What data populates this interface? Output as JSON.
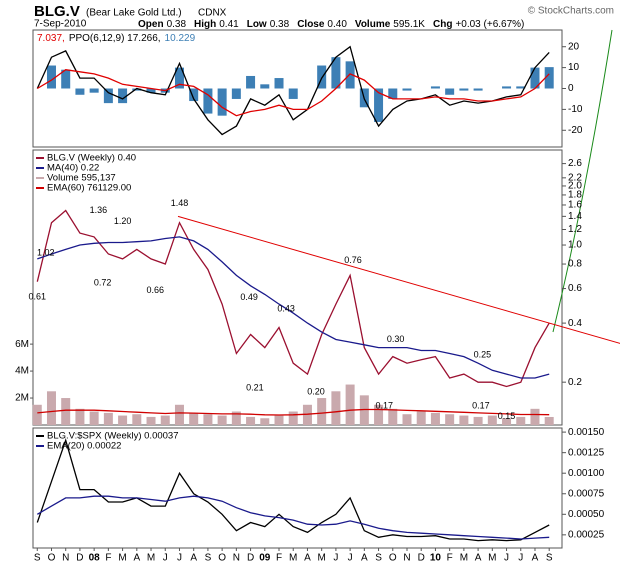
{
  "header": {
    "symbol": "BLG.V",
    "name": "(Bear Lake Gold Ltd.)",
    "exchange": "CDNX",
    "watermark": "© StockCharts.com",
    "date": "7-Sep-2010",
    "quote": [
      {
        "label": "Open",
        "value": "0.38"
      },
      {
        "label": "High",
        "value": "0.41"
      },
      {
        "label": "Low",
        "value": "0.38"
      },
      {
        "label": "Close",
        "value": "0.40"
      },
      {
        "label": "Volume",
        "value": "595.1K"
      },
      {
        "label": "Chg",
        "value": "+0.03 (+6.67%)"
      }
    ]
  },
  "chart_data": [
    {
      "type": "line",
      "legend": "inline",
      "xlim": [
        -0.3,
        36.9
      ],
      "ylim": [
        -28,
        28
      ],
      "yticks": [
        20,
        10,
        0,
        -10,
        -20
      ],
      "x": [
        0,
        1,
        2,
        3,
        4,
        5,
        6,
        7,
        8,
        9,
        10,
        11,
        12,
        13,
        14,
        15,
        16,
        17,
        18,
        19,
        20,
        21,
        22,
        23,
        24,
        25,
        26,
        27,
        28,
        29,
        30,
        31,
        32,
        33,
        34,
        35,
        36
      ],
      "series": [
        {
          "name": "10.229",
          "type": "bar",
          "color": "#3d7fb5",
          "values": [
            0,
            11,
            9,
            -3,
            -2,
            -7,
            -7,
            -1,
            -2,
            -2,
            10,
            -6,
            -12,
            -13,
            -5,
            6,
            2,
            5,
            -5,
            0,
            11,
            15,
            13,
            -9,
            -16,
            -5,
            -1,
            0,
            1,
            -3,
            -1,
            -1,
            0,
            1,
            1,
            10,
            10.229
          ]
        },
        {
          "name": "PPO(6,12,9) 17.266,",
          "color": "#000000",
          "values": [
            0,
            15,
            18,
            5,
            5,
            -2,
            -5,
            0,
            -2,
            -3,
            12,
            -5,
            -15,
            -22,
            -18,
            -5,
            -8,
            -3,
            -15,
            -10,
            5,
            15,
            20,
            -5,
            -18,
            -10,
            -6,
            -5,
            -3,
            -8,
            -6,
            -7,
            -6,
            -4,
            -3,
            10,
            17.266
          ]
        },
        {
          "name": "7.037,",
          "color": "#e00000",
          "values": [
            0,
            4,
            9,
            8,
            7,
            5,
            2,
            1,
            0,
            -1,
            2,
            1,
            -3,
            -9,
            -13,
            -11,
            -10,
            -8,
            -10,
            -10,
            -6,
            0,
            7,
            4,
            -2,
            -5,
            -5,
            -5,
            -4,
            -5,
            -5,
            -6,
            -6,
            -5,
            -4,
            0,
            7.037
          ]
        }
      ]
    },
    {
      "type": "line",
      "legend": "upper left",
      "log": true,
      "xlim": [
        -0.3,
        36.9
      ],
      "ylim": [
        0.121,
        3.05
      ],
      "yticks": [
        0.2,
        0.4,
        0.6,
        0.8,
        {
          "value": 1,
          "label": "1.0"
        },
        1.2,
        1.4,
        1.6,
        1.8,
        {
          "value": 2,
          "label": "2.0"
        },
        2.2,
        2.6
      ],
      "y2lim": [
        0,
        20400000
      ],
      "y2ticks": [
        {
          "value": 2000000,
          "label": "2M"
        },
        {
          "value": 4000000,
          "label": "4M"
        },
        {
          "value": 6000000,
          "label": "6M"
        }
      ],
      "x": [
        0,
        1,
        2,
        3,
        4,
        5,
        6,
        7,
        8,
        9,
        10,
        11,
        12,
        13,
        14,
        15,
        16,
        17,
        18,
        19,
        20,
        21,
        22,
        23,
        24,
        25,
        26,
        27,
        28,
        29,
        30,
        31,
        32,
        33,
        34,
        35,
        36
      ],
      "series": [
        {
          "name": "Volume 595,137",
          "type": "bar",
          "axis": "y2",
          "color": "#c9a9ad",
          "values": [
            1500000,
            2500000,
            2000000,
            1200000,
            1000000,
            900000,
            700000,
            800000,
            600000,
            700000,
            1500000,
            900000,
            800000,
            700000,
            1000000,
            600000,
            500000,
            700000,
            1000000,
            1500000,
            2000000,
            2500000,
            3000000,
            2200000,
            1500000,
            1200000,
            800000,
            1000000,
            900000,
            800000,
            700000,
            600000,
            700000,
            500000,
            600000,
            1200000,
            595137
          ]
        },
        {
          "name": "EMA(60) 761129.00",
          "axis": "y2",
          "color": "#d00000",
          "values": [
            900000,
            1000000,
            1100000,
            1100000,
            1100000,
            1050000,
            1000000,
            950000,
            900000,
            850000,
            900000,
            880000,
            850000,
            820000,
            820000,
            800000,
            760000,
            740000,
            760000,
            800000,
            880000,
            980000,
            1100000,
            1150000,
            1150000,
            1120000,
            1080000,
            1050000,
            1020000,
            980000,
            940000,
            900000,
            860000,
            820000,
            780000,
            780000,
            761129
          ]
        },
        {
          "name": "BLG.V (Weekly) 0.40",
          "color": "#9b1030",
          "values": [
            0.65,
            1.3,
            1.5,
            1.15,
            1.1,
            0.9,
            0.85,
            0.95,
            0.85,
            0.8,
            1.3,
            0.95,
            0.75,
            0.5,
            0.28,
            0.35,
            0.3,
            0.38,
            0.25,
            0.22,
            0.35,
            0.5,
            0.7,
            0.3,
            0.22,
            0.27,
            0.25,
            0.26,
            0.27,
            0.21,
            0.22,
            0.2,
            0.2,
            0.19,
            0.2,
            0.3,
            0.4
          ]
        },
        {
          "name": "MA(40) 0.22",
          "color": "#1a1a8c",
          "values": [
            0.85,
            0.9,
            0.95,
            1.0,
            1.02,
            1.03,
            1.03,
            1.04,
            1.05,
            1.08,
            1.1,
            1.05,
            0.95,
            0.82,
            0.7,
            0.62,
            0.56,
            0.5,
            0.45,
            0.4,
            0.36,
            0.33,
            0.32,
            0.31,
            0.3,
            0.3,
            0.3,
            0.29,
            0.29,
            0.28,
            0.27,
            0.25,
            0.23,
            0.22,
            0.21,
            0.21,
            0.22
          ]
        }
      ],
      "annotations": [
        {
          "x": 0,
          "value": 0.61,
          "label": "0.61"
        },
        {
          "x": 0.6,
          "value": 1.02,
          "label": "1.02"
        },
        {
          "x": 4.3,
          "value": 1.36,
          "label": "1.36"
        },
        {
          "x": 6,
          "value": 1.2,
          "label": "1.20"
        },
        {
          "x": 4.6,
          "value": 0.72,
          "label": "0.72"
        },
        {
          "x": 8.3,
          "value": 0.66,
          "label": "0.66"
        },
        {
          "x": 10,
          "value": 1.48,
          "label": "1.48"
        },
        {
          "x": 14.9,
          "value": 0.49,
          "label": "0.49"
        },
        {
          "x": 15.3,
          "value": 0.21,
          "label": "0.21"
        },
        {
          "x": 17.5,
          "value": 0.43,
          "label": "0.43"
        },
        {
          "x": 19.6,
          "value": 0.2,
          "label": "0.20"
        },
        {
          "x": 22.2,
          "value": 0.76,
          "label": "0.76"
        },
        {
          "x": 25.2,
          "value": 0.3,
          "label": "0.30"
        },
        {
          "x": 24.4,
          "value": 0.17,
          "label": "0.17"
        },
        {
          "x": 31.3,
          "value": 0.25,
          "label": "0.25"
        },
        {
          "x": 31.2,
          "value": 0.17,
          "label": "0.17"
        },
        {
          "x": 33.0,
          "value": 0.15,
          "label": "0.15"
        }
      ],
      "trendline": {
        "color": "#e00000",
        "x": [
          9.9,
          41
        ],
        "values": [
          1.4,
          0.315
        ]
      }
    },
    {
      "type": "line",
      "legend": "upper left",
      "xlim": [
        -0.3,
        36.9
      ],
      "ylim": [
        9e-05,
        0.00155
      ],
      "yticks": [
        0.00025,
        {
          "value": 0.0005,
          "label": "0.00050"
        },
        0.00075,
        {
          "value": 0.001,
          "label": "0.00100"
        },
        0.00125,
        {
          "value": 0.0015,
          "label": "0.00150"
        }
      ],
      "x": [
        0,
        1,
        2,
        3,
        4,
        5,
        6,
        7,
        8,
        9,
        10,
        11,
        12,
        13,
        14,
        15,
        16,
        17,
        18,
        19,
        20,
        21,
        22,
        23,
        24,
        25,
        26,
        27,
        28,
        29,
        30,
        31,
        32,
        33,
        34,
        35,
        36
      ],
      "xticks": [
        {
          "value": 0,
          "label": "S"
        },
        {
          "value": 1,
          "label": "O"
        },
        {
          "value": 2,
          "label": "N"
        },
        {
          "value": 3,
          "label": "D"
        },
        {
          "value": 4,
          "label": "08"
        },
        {
          "value": 5,
          "label": "F"
        },
        {
          "value": 6,
          "label": "M"
        },
        {
          "value": 7,
          "label": "A"
        },
        {
          "value": 8,
          "label": "M"
        },
        {
          "value": 9,
          "label": "J"
        },
        {
          "value": 10,
          "label": "J"
        },
        {
          "value": 11,
          "label": "A"
        },
        {
          "value": 12,
          "label": "S"
        },
        {
          "value": 13,
          "label": "O"
        },
        {
          "value": 14,
          "label": "N"
        },
        {
          "value": 15,
          "label": "D"
        },
        {
          "value": 16,
          "label": "09"
        },
        {
          "value": 17,
          "label": "F"
        },
        {
          "value": 18,
          "label": "M"
        },
        {
          "value": 19,
          "label": "A"
        },
        {
          "value": 20,
          "label": "M"
        },
        {
          "value": 21,
          "label": "J"
        },
        {
          "value": 22,
          "label": "J"
        },
        {
          "value": 23,
          "label": "A"
        },
        {
          "value": 24,
          "label": "S"
        },
        {
          "value": 25,
          "label": "O"
        },
        {
          "value": 26,
          "label": "N"
        },
        {
          "value": 27,
          "label": "D"
        },
        {
          "value": 28,
          "label": "10"
        },
        {
          "value": 29,
          "label": "F"
        },
        {
          "value": 30,
          "label": "M"
        },
        {
          "value": 31,
          "label": "A"
        },
        {
          "value": 32,
          "label": "M"
        },
        {
          "value": 33,
          "label": "J"
        },
        {
          "value": 34,
          "label": "J"
        },
        {
          "value": 35,
          "label": "A"
        },
        {
          "value": 36,
          "label": "S"
        }
      ],
      "series": [
        {
          "name": "BLG.V:$SPX (Weekly) 0.00037",
          "color": "#000000",
          "values": [
            0.0004,
            0.0009,
            0.0014,
            0.0008,
            0.0008,
            0.00065,
            0.00065,
            0.0007,
            0.0006,
            0.0006,
            0.001,
            0.00075,
            0.00065,
            0.0005,
            0.0003,
            0.0004,
            0.00035,
            0.0005,
            0.00035,
            0.00028,
            0.0004,
            0.0005,
            0.0007,
            0.0003,
            0.00022,
            0.00025,
            0.00023,
            0.00023,
            0.00024,
            0.0002,
            0.0002,
            0.00018,
            0.00019,
            0.00018,
            0.00019,
            0.00028,
            0.00037
          ]
        },
        {
          "name": "EMA(20) 0.00022",
          "color": "#1a1a8c",
          "values": [
            0.0005,
            0.0006,
            0.0007,
            0.0007,
            0.00072,
            0.00072,
            0.0007,
            0.0007,
            0.00068,
            0.00066,
            0.0007,
            0.00072,
            0.0007,
            0.00066,
            0.00058,
            0.00052,
            0.00048,
            0.00046,
            0.00043,
            0.00038,
            0.00037,
            0.00038,
            0.00042,
            0.00038,
            0.00033,
            0.0003,
            0.00028,
            0.00027,
            0.00026,
            0.00025,
            0.00024,
            0.00023,
            0.00022,
            0.00021,
            0.0002,
            0.00021,
            0.00022
          ]
        }
      ]
    }
  ]
}
